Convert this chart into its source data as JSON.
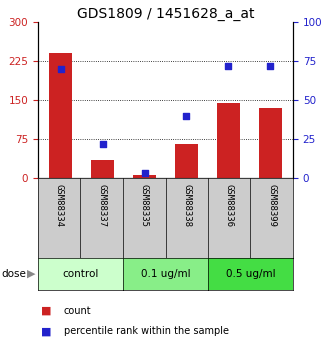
{
  "title": "GDS1809 / 1451628_a_at",
  "samples": [
    "GSM88334",
    "GSM88337",
    "GSM88335",
    "GSM88338",
    "GSM88336",
    "GSM88399"
  ],
  "counts": [
    240,
    35,
    5,
    65,
    145,
    135
  ],
  "percentiles": [
    70,
    22,
    3,
    40,
    72,
    72
  ],
  "left_ylim": [
    0,
    300
  ],
  "right_ylim": [
    0,
    100
  ],
  "left_yticks": [
    0,
    75,
    150,
    225,
    300
  ],
  "right_yticks": [
    0,
    25,
    50,
    75,
    100
  ],
  "bar_color": "#cc2222",
  "dot_color": "#2222cc",
  "dose_groups": [
    {
      "label": "control",
      "indices": [
        0,
        1
      ],
      "color": "#ccffcc"
    },
    {
      "label": "0.1 ug/ml",
      "indices": [
        2,
        3
      ],
      "color": "#88ee88"
    },
    {
      "label": "0.5 ug/ml",
      "indices": [
        4,
        5
      ],
      "color": "#44dd44"
    }
  ],
  "dose_label": "dose",
  "legend_count": "count",
  "legend_percentile": "percentile rank within the sample",
  "title_fontsize": 10,
  "tick_fontsize": 7.5,
  "bg_color_sample": "#cccccc",
  "fig_w": 3.21,
  "fig_h": 3.45,
  "dpi": 100
}
